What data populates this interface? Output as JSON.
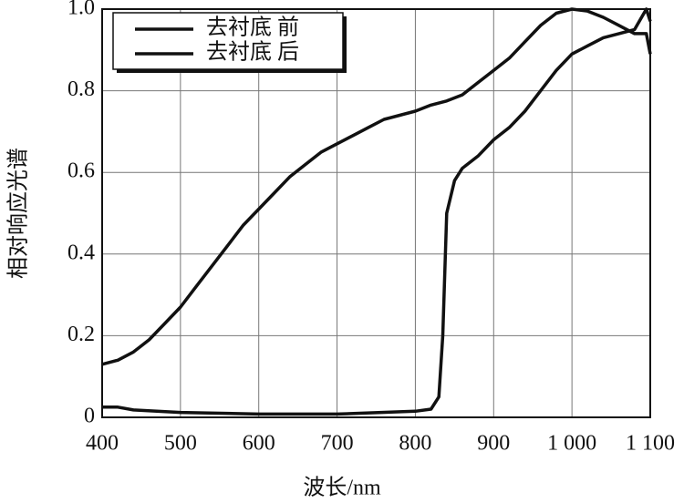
{
  "chart_data": {
    "type": "line",
    "x_label": "波长/nm",
    "y_label": "相对响应光谱",
    "xlim": [
      400,
      1100
    ],
    "ylim": [
      0,
      1.0
    ],
    "xticks": [
      400,
      500,
      600,
      700,
      800,
      900,
      {
        "value": 1000,
        "label": "1 000"
      },
      {
        "value": 1100,
        "label": "1 100"
      }
    ],
    "yticks": [
      0,
      0.2,
      0.4,
      0.6,
      0.8,
      {
        "value": 1.0,
        "label": "1.0"
      }
    ],
    "grid": true,
    "legend": "upper-left",
    "series": [
      {
        "name": "去衬底 前",
        "color": "#111111",
        "x": [
          400,
          420,
          440,
          460,
          480,
          500,
          520,
          540,
          560,
          580,
          600,
          620,
          640,
          660,
          680,
          700,
          720,
          740,
          760,
          780,
          800,
          820,
          840,
          860,
          880,
          900,
          920,
          940,
          960,
          980,
          1000,
          1020,
          1040,
          1060,
          1080,
          1095,
          1100
        ],
        "values": [
          0.13,
          0.14,
          0.16,
          0.19,
          0.23,
          0.27,
          0.32,
          0.37,
          0.42,
          0.47,
          0.51,
          0.55,
          0.59,
          0.62,
          0.65,
          0.67,
          0.69,
          0.71,
          0.73,
          0.74,
          0.75,
          0.765,
          0.775,
          0.79,
          0.82,
          0.85,
          0.88,
          0.92,
          0.96,
          0.99,
          1.0,
          0.995,
          0.98,
          0.96,
          0.94,
          0.94,
          0.89
        ]
      },
      {
        "name": "去衬底 后",
        "color": "#111111",
        "x": [
          400,
          420,
          440,
          500,
          600,
          700,
          800,
          820,
          830,
          835,
          840,
          850,
          860,
          880,
          900,
          920,
          940,
          960,
          980,
          1000,
          1020,
          1040,
          1060,
          1080,
          1095,
          1100
        ],
        "values": [
          0.025,
          0.025,
          0.018,
          0.012,
          0.008,
          0.008,
          0.015,
          0.02,
          0.05,
          0.2,
          0.5,
          0.58,
          0.61,
          0.64,
          0.68,
          0.71,
          0.75,
          0.8,
          0.85,
          0.89,
          0.91,
          0.93,
          0.94,
          0.95,
          1.0,
          0.97
        ]
      }
    ]
  }
}
